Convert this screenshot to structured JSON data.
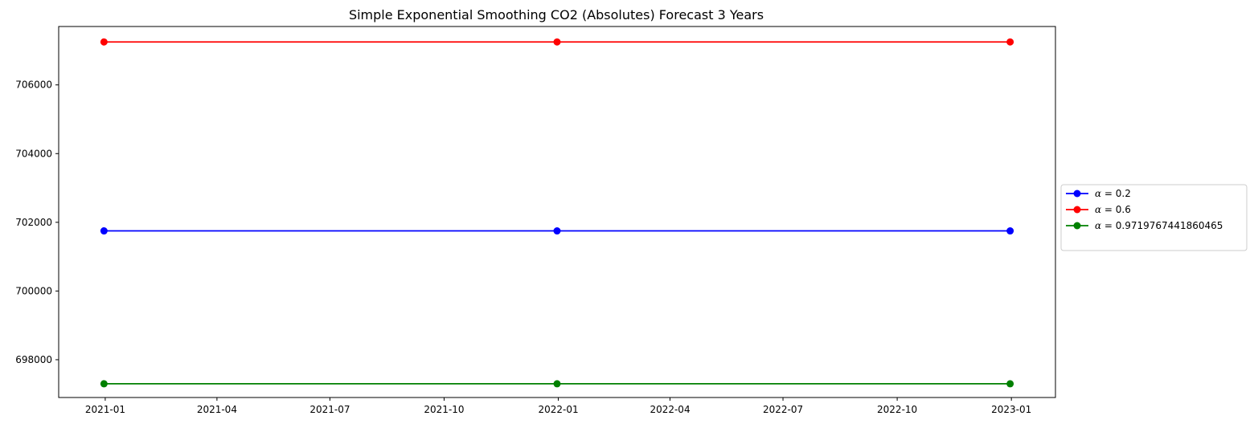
{
  "chart_data": {
    "type": "line",
    "title": "Simple Exponential Smoothing CO2 (Absolutes) Forecast 3 Years",
    "xlabel": "",
    "ylabel": "",
    "x": [
      "2020-12-31",
      "2021-12-31",
      "2022-12-31"
    ],
    "x_ticks": [
      "2021-01",
      "2021-04",
      "2021-07",
      "2021-10",
      "2022-01",
      "2022-04",
      "2022-07",
      "2022-10",
      "2023-01"
    ],
    "y_ticks": [
      698000,
      700000,
      702000,
      704000,
      706000
    ],
    "ylim": [
      696900,
      707700
    ],
    "grid": false,
    "legend_position": "center-right-outside",
    "series": [
      {
        "name": "α = 0.2",
        "alpha": "0.2",
        "color": "#0000ff",
        "values": [
          701750,
          701750,
          701750
        ]
      },
      {
        "name": "α = 0.6",
        "alpha": "0.6",
        "color": "#ff0000",
        "values": [
          707250,
          707250,
          707250
        ]
      },
      {
        "name": "α = 0.9719767441860465",
        "alpha": "0.9719767441860465",
        "color": "#008000",
        "values": [
          697300,
          697300,
          697300
        ]
      }
    ]
  }
}
